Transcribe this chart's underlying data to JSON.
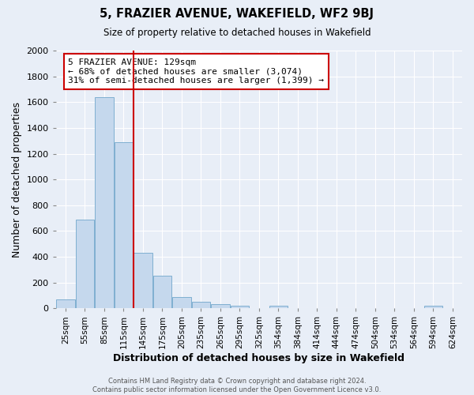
{
  "title": "5, FRAZIER AVENUE, WAKEFIELD, WF2 9BJ",
  "subtitle": "Size of property relative to detached houses in Wakefield",
  "xlabel": "Distribution of detached houses by size in Wakefield",
  "ylabel": "Number of detached properties",
  "bar_labels": [
    "25sqm",
    "55sqm",
    "85sqm",
    "115sqm",
    "145sqm",
    "175sqm",
    "205sqm",
    "235sqm",
    "265sqm",
    "295sqm",
    "325sqm",
    "354sqm",
    "384sqm",
    "414sqm",
    "444sqm",
    "474sqm",
    "504sqm",
    "534sqm",
    "564sqm",
    "594sqm",
    "624sqm"
  ],
  "bar_values": [
    70,
    690,
    1640,
    1290,
    430,
    255,
    90,
    50,
    30,
    20,
    0,
    20,
    0,
    0,
    0,
    0,
    0,
    0,
    0,
    20,
    0
  ],
  "bar_color": "#c5d8ed",
  "bar_edge_color": "#7fafd0",
  "vline_x": 4,
  "ylim": [
    0,
    2000
  ],
  "yticks": [
    0,
    200,
    400,
    600,
    800,
    1000,
    1200,
    1400,
    1600,
    1800,
    2000
  ],
  "annotation_box_text": [
    "5 FRAZIER AVENUE: 129sqm",
    "← 68% of detached houses are smaller (3,074)",
    "31% of semi-detached houses are larger (1,399) →"
  ],
  "annotation_fontsize": 8.0,
  "vline_color": "#cc0000",
  "fig_background_color": "#e8eef7",
  "plot_background_color": "#e8eef7",
  "grid_color": "#ffffff",
  "footer": "Contains HM Land Registry data © Crown copyright and database right 2024.\nContains public sector information licensed under the Open Government Licence v3.0."
}
